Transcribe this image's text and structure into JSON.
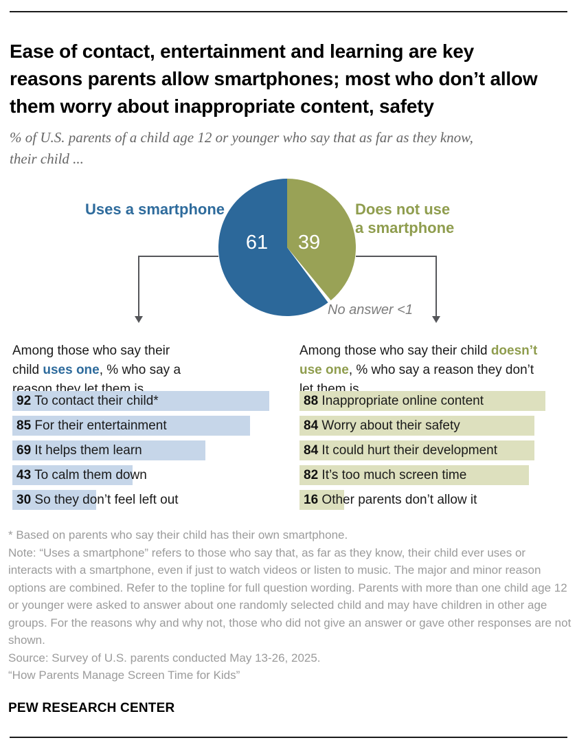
{
  "header": {
    "title": "Ease of contact, entertainment and learning are key reasons parents allow smartphones; most who don’t allow them worry about inappropriate content, safety",
    "subtitle": "% of U.S. parents of a child age 12 or younger who say that as far as they know, their child ..."
  },
  "colors": {
    "pie_blue": "#2C689A",
    "pie_green": "#99A256",
    "bar_light_blue": "#C6D6E9",
    "bar_light_green": "#DDE0BE",
    "label_blue": "#2E6B9C",
    "label_green": "#8F9D4E",
    "connector_gray": "#55565A",
    "footnote_gray": "#9B9B9B"
  },
  "pie": {
    "uses_label": "Uses a smartphone",
    "uses_value": "61",
    "not_use_label_line1": "Does not use",
    "not_use_label_line2": "a smartphone",
    "not_use_value": "39",
    "no_answer_label": "No answer <1"
  },
  "left_section": {
    "intro_pre": "Among those who say their child ",
    "intro_highlight": "uses one",
    "intro_post": ", % who say a reason they let them is ...",
    "items": [
      {
        "value": "92",
        "label": "To contact their child*"
      },
      {
        "value": "85",
        "label": "For their entertainment"
      },
      {
        "value": "69",
        "label": "It helps them learn"
      },
      {
        "value": "43",
        "label": "To calm them down"
      },
      {
        "value": "30",
        "label": "So they don’t feel left out"
      }
    ]
  },
  "right_section": {
    "intro_pre": "Among those who say their child ",
    "intro_highlight": "doesn’t use one",
    "intro_post": ", % who say a reason they don’t let them is ...",
    "items": [
      {
        "value": "88",
        "label": "Inappropriate online content"
      },
      {
        "value": "84",
        "label": "Worry about their safety"
      },
      {
        "value": "84",
        "label": "It could hurt their development"
      },
      {
        "value": "82",
        "label": "It’s too much screen time"
      },
      {
        "value": "16",
        "label": "Other parents don’t allow it"
      }
    ]
  },
  "footnotes": {
    "asterisk": "* Based on parents who say their child has their own smartphone.",
    "note": "Note: “Uses a smartphone” refers to those who say that, as far as they know, their child ever uses or interacts with a smartphone, even if just to watch videos or listen to music. The major and minor reason options are combined. Refer to the topline for full question wording. Parents with more than one child age 12 or younger were asked to answer about one randomly selected child and may have children in other age groups. For the reasons why and why not, those who did not give an answer or gave other responses are not shown.",
    "source": "Source: Survey of U.S. parents conducted May 13-26, 2025.",
    "report": "“How Parents Manage Screen Time for Kids”"
  },
  "footer": {
    "brand": "PEW RESEARCH CENTER"
  },
  "chart_data": [
    {
      "type": "pie",
      "title": "% of U.S. parents of a child age 12 or younger who say that as far as they know, their child ...",
      "labels": [
        "Uses a smartphone",
        "Does not use a smartphone",
        "No answer"
      ],
      "values": [
        61,
        39,
        0.5
      ],
      "value_labels": [
        "61",
        "39",
        "<1"
      ],
      "colors": [
        "#2C689A",
        "#99A256",
        "#FFFFFF"
      ],
      "start_angle_deg": 0,
      "direction": "clockwise"
    },
    {
      "type": "bar",
      "orientation": "horizontal",
      "title": "Among those who say their child uses one, % who say a reason they let them is ...",
      "categories": [
        "To contact their child*",
        "For their entertainment",
        "It helps them learn",
        "To calm them down",
        "So they don’t feel left out"
      ],
      "values": [
        92,
        85,
        69,
        43,
        30
      ],
      "xlim": [
        0,
        100
      ],
      "bar_color": "#C6D6E9",
      "grid": false
    },
    {
      "type": "bar",
      "orientation": "horizontal",
      "title": "Among those who say their child doesn’t use one, % who say a reason they don’t let them is ...",
      "categories": [
        "Inappropriate online content",
        "Worry about their safety",
        "It could hurt their development",
        "It’s too much screen time",
        "Other parents don’t allow it"
      ],
      "values": [
        88,
        84,
        84,
        82,
        16
      ],
      "xlim": [
        0,
        100
      ],
      "bar_color": "#DDE0BE",
      "grid": false
    }
  ]
}
